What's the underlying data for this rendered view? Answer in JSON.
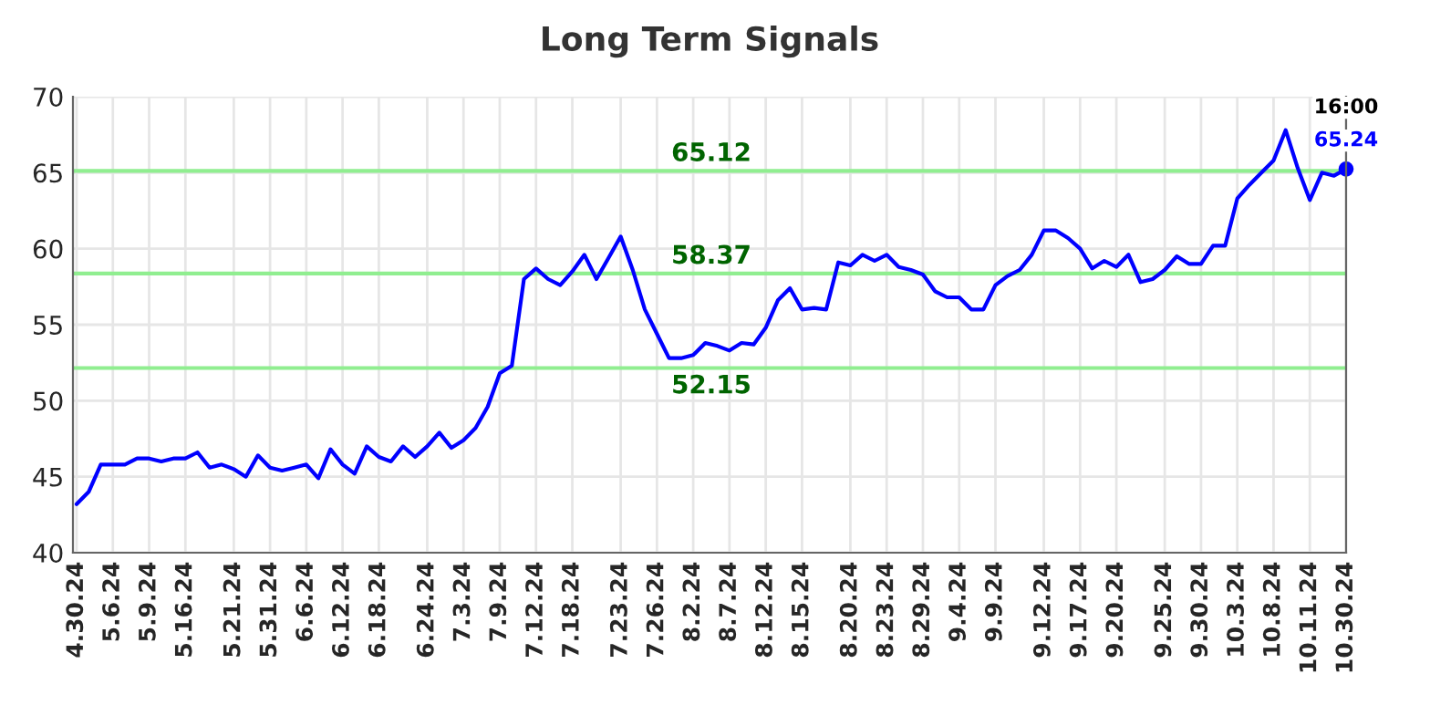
{
  "chart_data": {
    "type": "line",
    "title": "Long Term Signals",
    "categories": [
      "4.30.24",
      null,
      null,
      "5.6.24",
      null,
      null,
      "5.9.24",
      null,
      null,
      "5.16.24",
      null,
      null,
      null,
      "5.21.24",
      null,
      null,
      "5.31.24",
      null,
      null,
      "6.6.24",
      null,
      null,
      "6.12.24",
      null,
      null,
      "6.18.24",
      null,
      null,
      null,
      "6.24.24",
      null,
      null,
      "7.3.24",
      null,
      null,
      "7.9.24",
      null,
      null,
      "7.12.24",
      null,
      null,
      "7.18.24",
      null,
      null,
      null,
      "7.23.24",
      null,
      null,
      "7.26.24",
      null,
      null,
      "8.2.24",
      null,
      null,
      "8.7.24",
      null,
      null,
      "8.12.24",
      null,
      null,
      "8.15.24",
      null,
      null,
      null,
      "8.20.24",
      null,
      null,
      "8.23.24",
      null,
      null,
      "8.29.24",
      null,
      null,
      "9.4.24",
      null,
      null,
      "9.9.24",
      null,
      null,
      null,
      "9.12.24",
      null,
      null,
      "9.17.24",
      null,
      null,
      "9.20.24",
      null,
      null,
      null,
      "9.25.24",
      null,
      null,
      "9.30.24",
      null,
      null,
      "10.3.24",
      null,
      null,
      "10.8.24",
      null,
      null,
      "10.11.24",
      null,
      null,
      "10.30.24"
    ],
    "series": [
      {
        "color": "#0000ff",
        "values": [
          43.2,
          44.0,
          45.8,
          45.8,
          45.8,
          46.2,
          46.2,
          46.0,
          46.2,
          46.2,
          46.6,
          45.6,
          45.8,
          45.5,
          45.0,
          46.4,
          45.6,
          45.4,
          45.6,
          45.8,
          44.9,
          46.8,
          45.8,
          45.2,
          47.0,
          46.3,
          46.0,
          47.0,
          46.3,
          47.0,
          47.9,
          46.9,
          47.4,
          48.2,
          49.6,
          51.8,
          52.3,
          58.0,
          58.7,
          58.0,
          57.6,
          58.5,
          59.6,
          58.0,
          59.4,
          60.8,
          58.6,
          56.0,
          54.4,
          52.8,
          52.8,
          53.0,
          53.8,
          53.6,
          53.3,
          53.8,
          53.7,
          54.8,
          56.6,
          57.4,
          56.0,
          56.1,
          56.0,
          59.1,
          58.9,
          59.6,
          59.2,
          59.6,
          58.8,
          58.6,
          58.3,
          57.2,
          56.8,
          56.8,
          56.0,
          56.0,
          57.6,
          58.2,
          58.6,
          59.6,
          61.2,
          61.2,
          60.7,
          60.0,
          58.7,
          59.2,
          58.8,
          59.6,
          57.8,
          58.0,
          58.6,
          59.5,
          59.0,
          59.0,
          60.2,
          60.2,
          63.3,
          64.2,
          65.0,
          65.8,
          67.8,
          65.3,
          63.2,
          65.0,
          64.8,
          65.24
        ]
      }
    ],
    "ylim": [
      40,
      70
    ],
    "yticks": [
      40,
      45,
      50,
      55,
      60,
      65,
      70
    ],
    "grid": true,
    "marker": "none",
    "line_style": "solid",
    "ref_lines": [
      {
        "axis": "y",
        "value": 65.12,
        "label": "65.12",
        "color": "#90ee90"
      },
      {
        "axis": "y",
        "value": 58.37,
        "label": "58.37",
        "color": "#90ee90"
      },
      {
        "axis": "y",
        "value": 52.15,
        "label": "52.15",
        "color": "#90ee90"
      }
    ],
    "annotations": [
      {
        "text": "16:00\n65.24",
        "x": "10.30.24",
        "y": 65.24
      }
    ]
  }
}
